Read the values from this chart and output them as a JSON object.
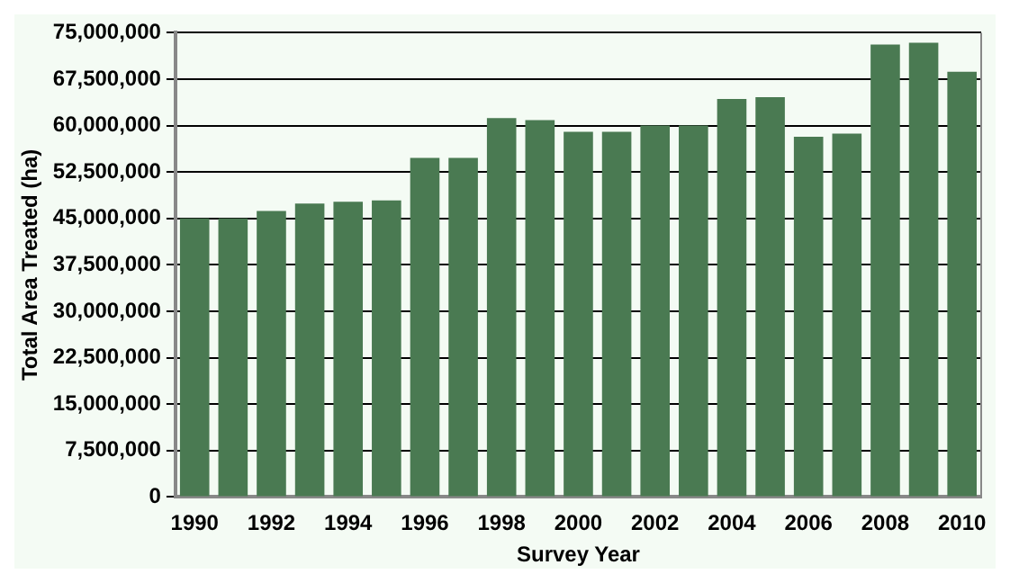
{
  "chart_data": {
    "type": "bar",
    "xlabel": "Survey Year",
    "ylabel": "Total Area Treated (ha)",
    "categories": [
      "1990",
      null,
      "1992",
      null,
      "1994",
      null,
      "1996",
      null,
      "1998",
      null,
      "2000",
      null,
      "2002",
      null,
      "2004",
      null,
      "2006",
      null,
      "2008",
      null,
      "2010"
    ],
    "values": [
      45000000,
      45000000,
      46200000,
      47400000,
      47700000,
      47900000,
      54800000,
      54800000,
      61200000,
      60900000,
      59000000,
      59000000,
      60000000,
      60000000,
      64300000,
      64600000,
      58200000,
      58700000,
      73100000,
      73400000,
      68700000
    ],
    "color": "#4a7a52",
    "ylim": [
      0,
      75000000
    ],
    "yticks": [
      {
        "value": 0,
        "label": "0"
      },
      {
        "value": 7500000,
        "label": "7,500,000"
      },
      {
        "value": 15000000,
        "label": "15,000,000"
      },
      {
        "value": 22500000,
        "label": "22,500,000"
      },
      {
        "value": 30000000,
        "label": "30,000,000"
      },
      {
        "value": 37500000,
        "label": "37,500,000"
      },
      {
        "value": 45000000,
        "label": "45,000,000"
      },
      {
        "value": 52500000,
        "label": "52,500,000"
      },
      {
        "value": 60000000,
        "label": "60,000,000"
      },
      {
        "value": 67500000,
        "label": "67,500,000"
      },
      {
        "value": 75000000,
        "label": "75,000,000"
      }
    ],
    "grid": "y",
    "legend": false
  }
}
